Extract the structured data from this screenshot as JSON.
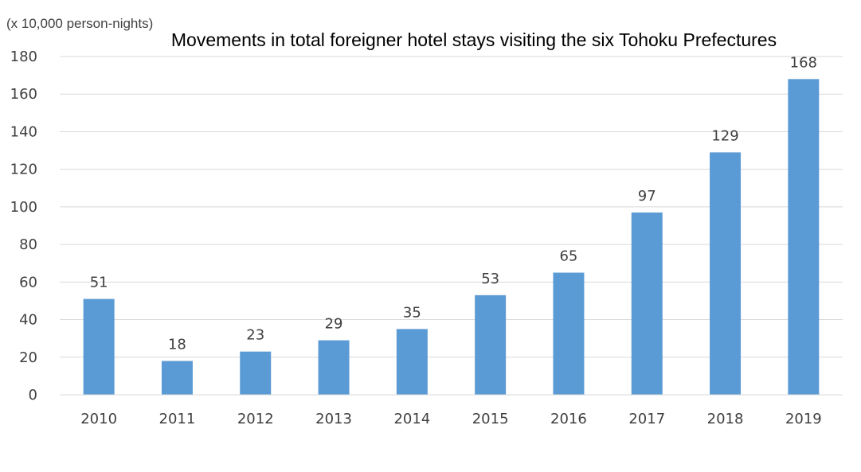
{
  "chart_data": {
    "type": "bar",
    "title": "Movements in total foreigner hotel stays visiting the six Tohoku Prefectures",
    "unit_label": "(x 10,000 person-nights)",
    "xlabel": "",
    "ylabel": "",
    "categories": [
      "2010",
      "2011",
      "2012",
      "2013",
      "2014",
      "2015",
      "2016",
      "2017",
      "2018",
      "2019"
    ],
    "values": [
      51,
      18,
      23,
      29,
      35,
      53,
      65,
      97,
      129,
      168
    ],
    "ylim": [
      0,
      180
    ],
    "yticks": [
      0,
      20,
      40,
      60,
      80,
      100,
      120,
      140,
      160,
      180
    ],
    "grid": true,
    "legend": "none",
    "bar_color": "#5B9BD5",
    "grid_color": "#D9D9D9",
    "text_color": "#404040"
  }
}
